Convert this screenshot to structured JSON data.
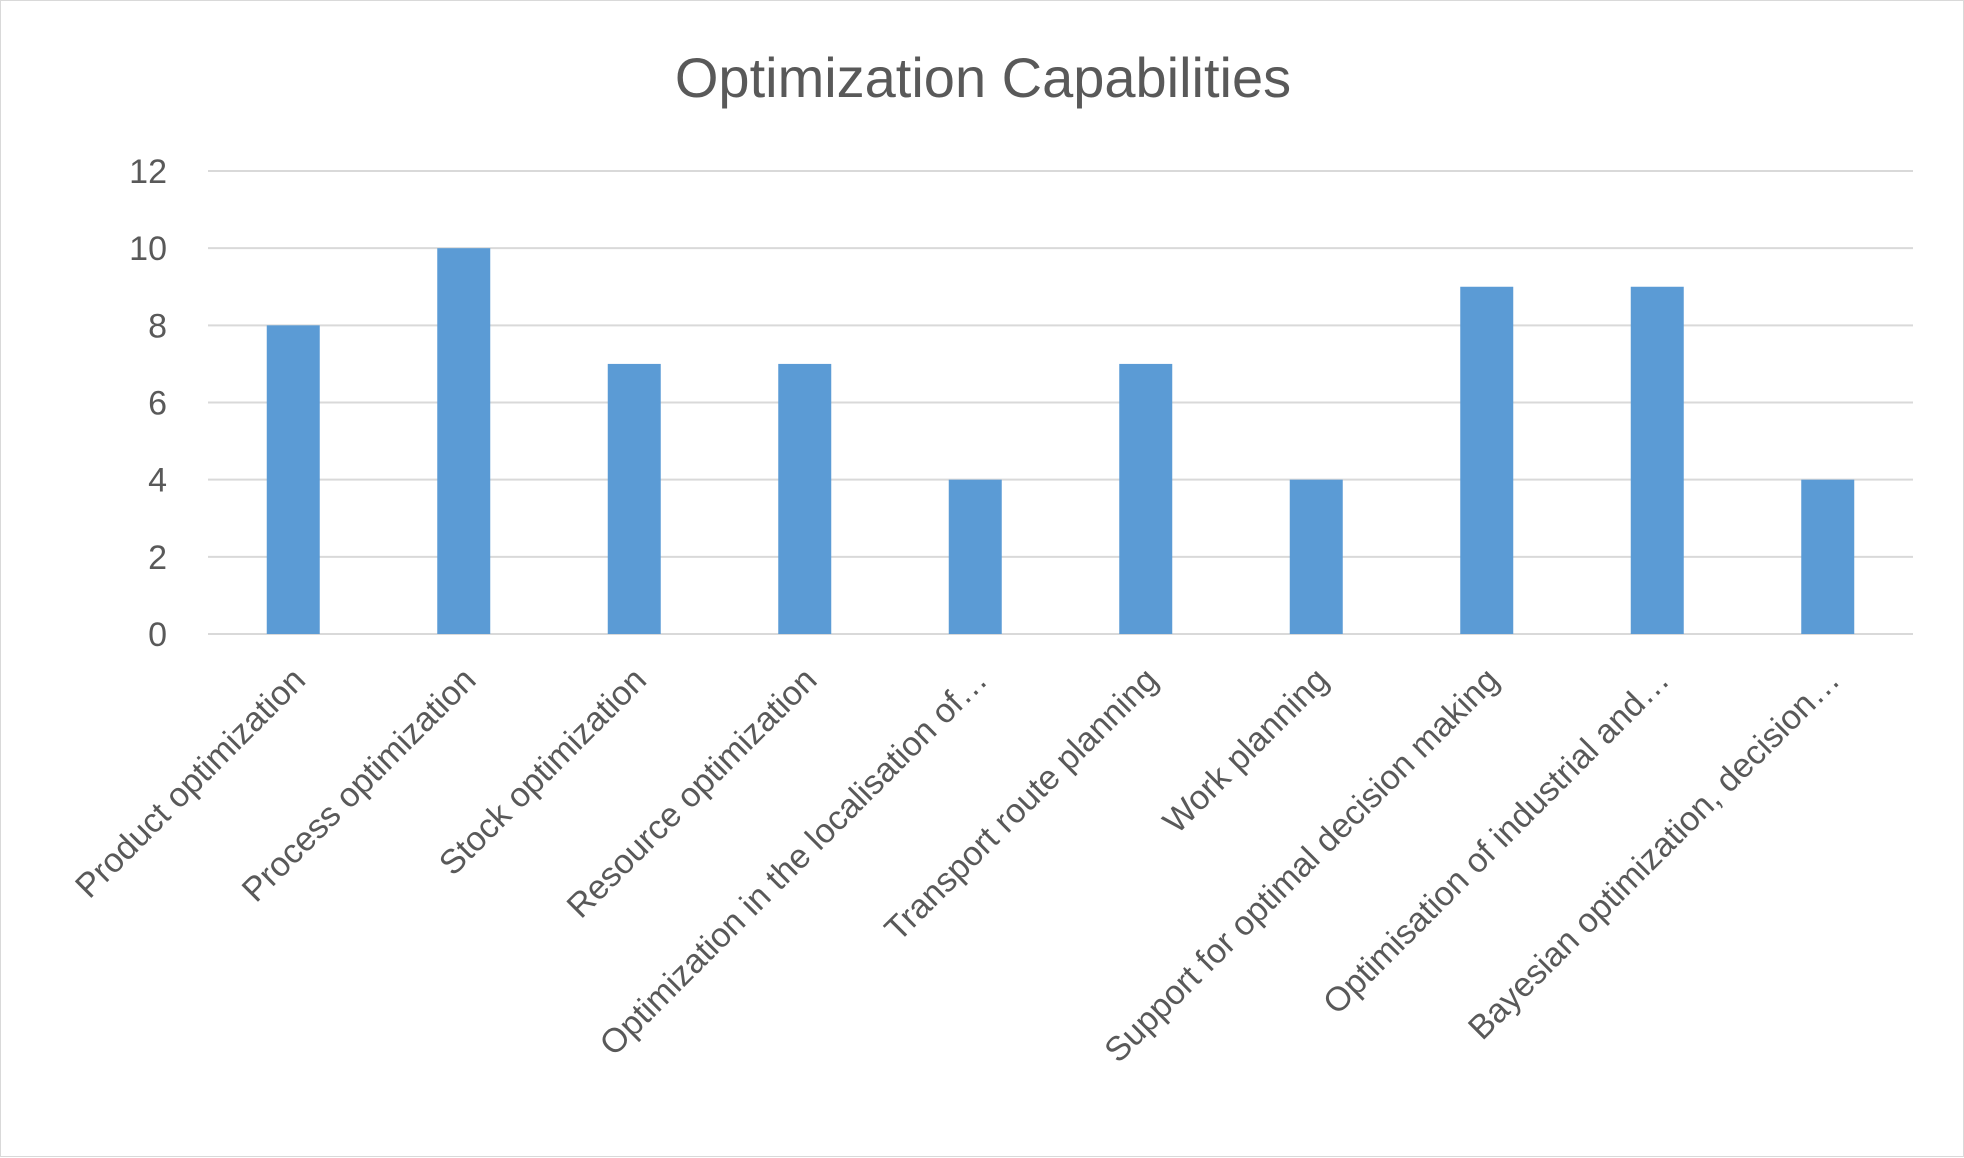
{
  "chart_data": {
    "type": "bar",
    "title": "Optimization Capabilities",
    "xlabel": "",
    "ylabel": "",
    "ylim": [
      0,
      12
    ],
    "yticks": [
      0,
      2,
      4,
      6,
      8,
      10,
      12
    ],
    "grid": true,
    "legend": "none",
    "categories": [
      "Product optimization",
      "Process optimization",
      "Stock optimization",
      "Resource optimization",
      "Optimization in the localisation of…",
      "Transport route planning",
      "Work planning",
      "Support for optimal decision making",
      "Optimisation of industrial and…",
      "Bayesian optimization, decision…"
    ],
    "values": [
      8,
      10,
      7,
      7,
      4,
      7,
      4,
      9,
      9,
      4
    ],
    "bar_color": "#5b9bd5"
  }
}
